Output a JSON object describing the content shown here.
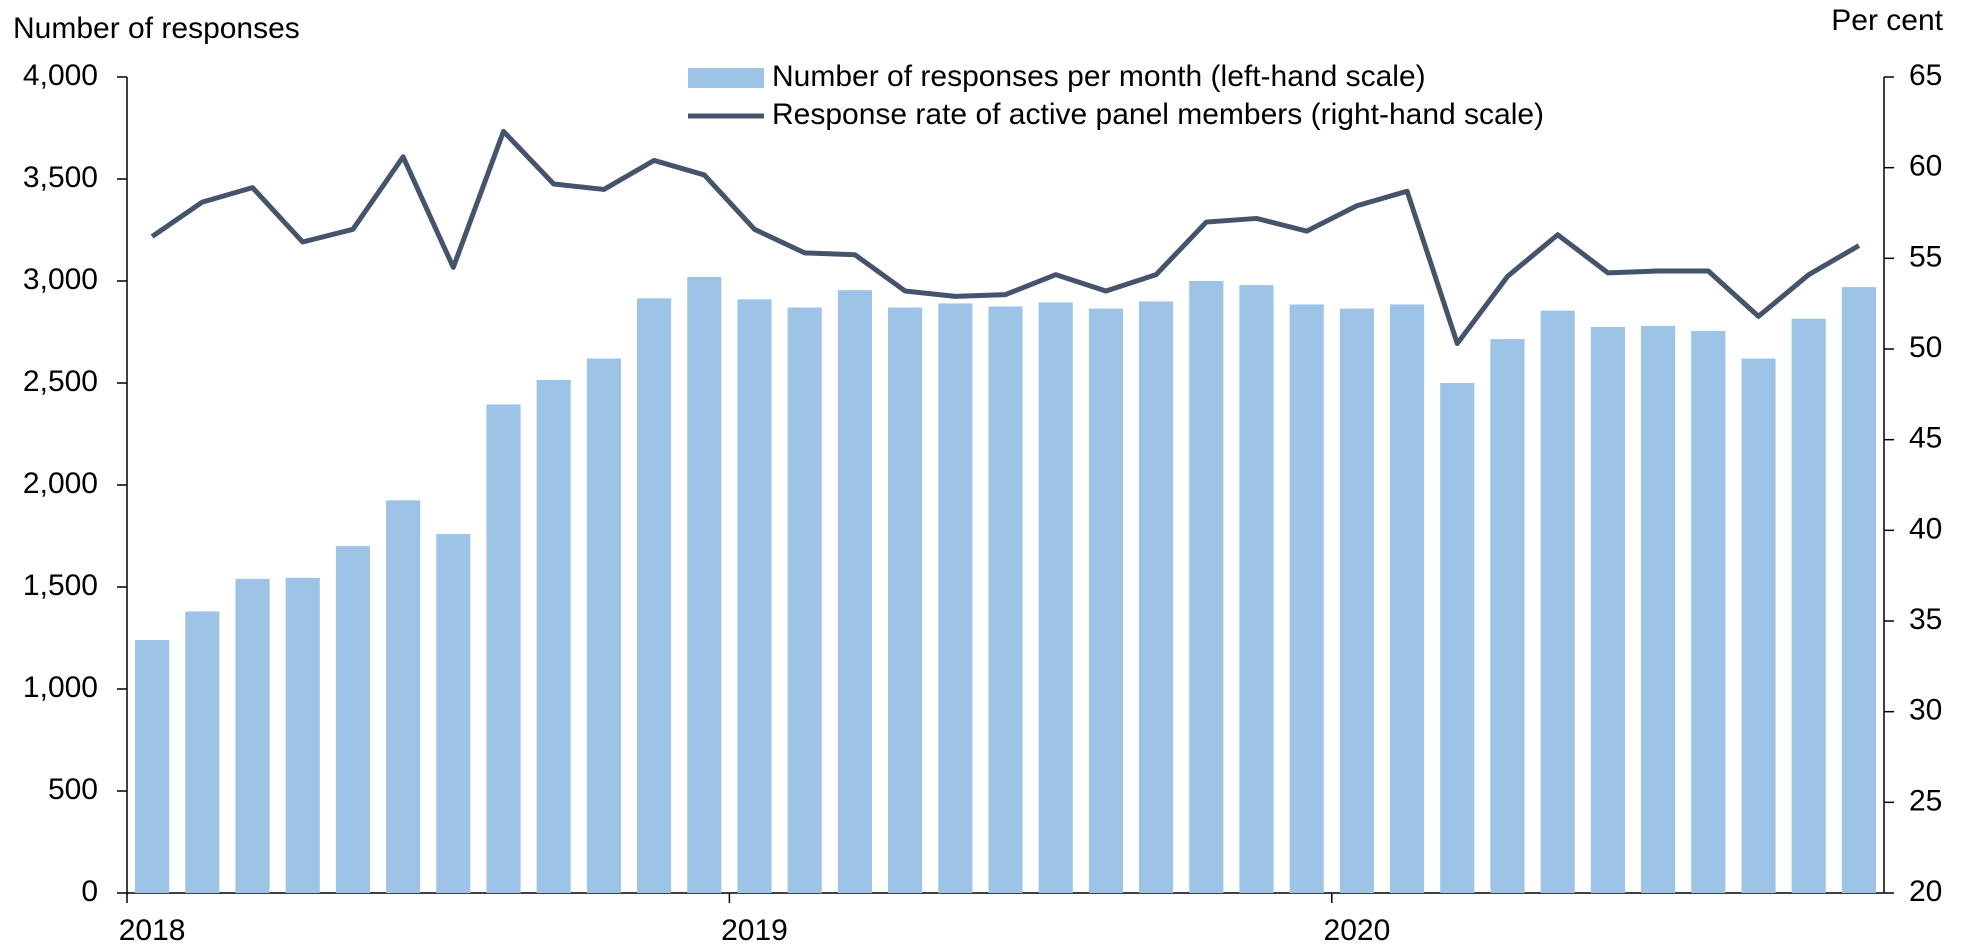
{
  "chart_data": {
    "type": "bar",
    "y_label": "Number of responses",
    "y2_label": "Per cent",
    "categories": [
      "2018",
      null,
      null,
      null,
      null,
      null,
      null,
      null,
      null,
      null,
      null,
      null,
      "2019",
      null,
      null,
      null,
      null,
      null,
      null,
      null,
      null,
      null,
      null,
      null,
      "2020",
      null,
      null,
      null,
      null,
      null,
      null,
      null,
      null,
      null,
      null
    ],
    "series": [
      {
        "name": "Number of responses per month (left-hand scale)",
        "type": "bar",
        "color": "#9dc3e6",
        "values": [
          1240,
          1380,
          1540,
          1545,
          1700,
          1925,
          1760,
          2395,
          2515,
          2620,
          2915,
          3020,
          2910,
          2870,
          2955,
          2870,
          2890,
          2875,
          2895,
          2865,
          2900,
          3000,
          2980,
          2885,
          2865,
          2885,
          2500,
          2715,
          2855,
          2775,
          2780,
          2755,
          2620,
          2815,
          2970
        ]
      },
      {
        "name": "Response rate of active panel members (right-hand scale)",
        "type": "line",
        "axis": "y2",
        "color": "#44546a",
        "values": [
          56.2,
          58.1,
          58.9,
          55.9,
          56.6,
          60.6,
          54.5,
          62.0,
          59.1,
          58.8,
          60.4,
          59.6,
          56.6,
          55.3,
          55.2,
          53.2,
          52.9,
          53.0,
          54.1,
          53.2,
          54.1,
          57.0,
          57.2,
          56.5,
          57.9,
          58.7,
          50.3,
          54.0,
          56.3,
          54.2,
          54.3,
          54.3,
          51.8,
          54.1,
          55.7
        ]
      }
    ],
    "ylim": [
      0,
      4000
    ],
    "yticks": [
      0,
      500,
      {
        "value": 1000,
        "label": "1,000"
      },
      {
        "value": 1500,
        "label": "1,500"
      },
      {
        "value": 2000,
        "label": "2,000"
      },
      {
        "value": 2500,
        "label": "2,500"
      },
      {
        "value": 3000,
        "label": "3,000"
      },
      {
        "value": 3500,
        "label": "3,500"
      },
      {
        "value": 4000,
        "label": "4,000"
      }
    ],
    "y2lim": [
      20,
      65
    ],
    "y2ticks": [
      20,
      25,
      30,
      35,
      40,
      45,
      50,
      55,
      60,
      65
    ],
    "grid": false,
    "legend": "top"
  }
}
